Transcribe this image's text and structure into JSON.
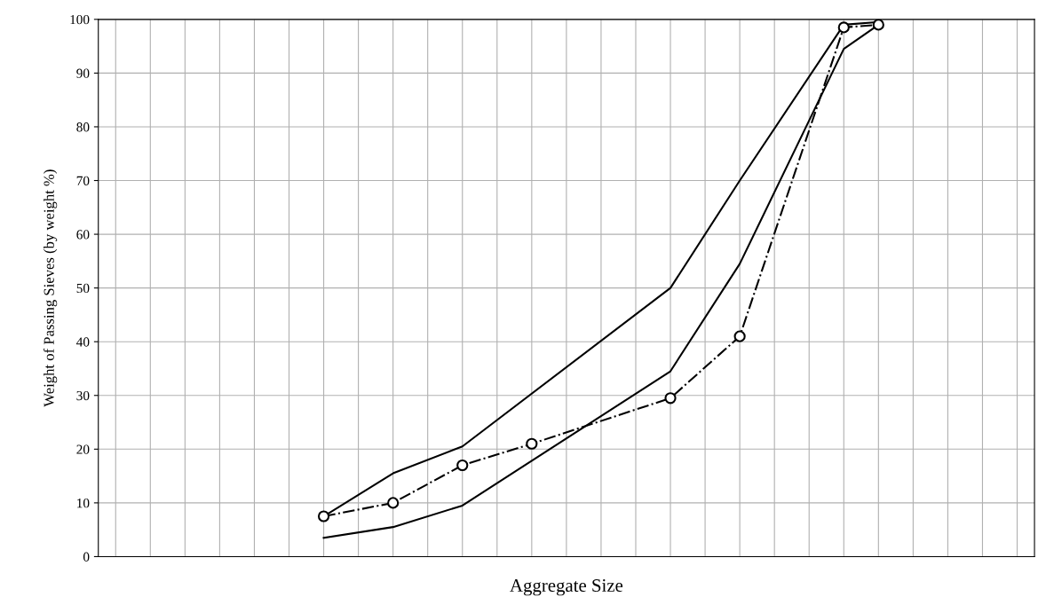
{
  "chart_data": {
    "type": "line",
    "xlabel": "Aggregate Size",
    "ylabel": "Weight of Passing Sieves (by weight %)",
    "categories": [
      null,
      null,
      null,
      null,
      null,
      null,
      null,
      null,
      null,
      null,
      null,
      null,
      null,
      null,
      null,
      null,
      null,
      null,
      null,
      null,
      null,
      null,
      null,
      null,
      null,
      null,
      null
    ],
    "series": [
      {
        "color": "#000000",
        "line_style": "solid",
        "marker": "none",
        "values": [
          null,
          null,
          null,
          null,
          null,
          null,
          7.5,
          null,
          15.5,
          null,
          20.5,
          null,
          null,
          null,
          null,
          null,
          50,
          null,
          70,
          null,
          null,
          99,
          99.5,
          null,
          null,
          null,
          null
        ]
      },
      {
        "color": "#000000",
        "line_style": "solid",
        "marker": "none",
        "values": [
          null,
          null,
          null,
          null,
          null,
          null,
          3.5,
          null,
          5.5,
          null,
          9.5,
          null,
          null,
          null,
          null,
          null,
          34.5,
          null,
          54.5,
          null,
          null,
          94.5,
          99,
          null,
          null,
          null,
          null
        ]
      },
      {
        "color": "#000000",
        "line_style": "dashed",
        "marker": "circle",
        "values": [
          null,
          null,
          null,
          null,
          null,
          null,
          7.5,
          null,
          10,
          null,
          17,
          null,
          21,
          null,
          null,
          null,
          29.5,
          null,
          41,
          null,
          null,
          98.5,
          99,
          null,
          null,
          null,
          null
        ]
      }
    ],
    "ylim": [
      0,
      100
    ],
    "yticks": [
      0,
      10,
      20,
      30,
      40,
      50,
      60,
      70,
      80,
      90,
      100
    ],
    "grid": true,
    "tick_labels": "y"
  }
}
